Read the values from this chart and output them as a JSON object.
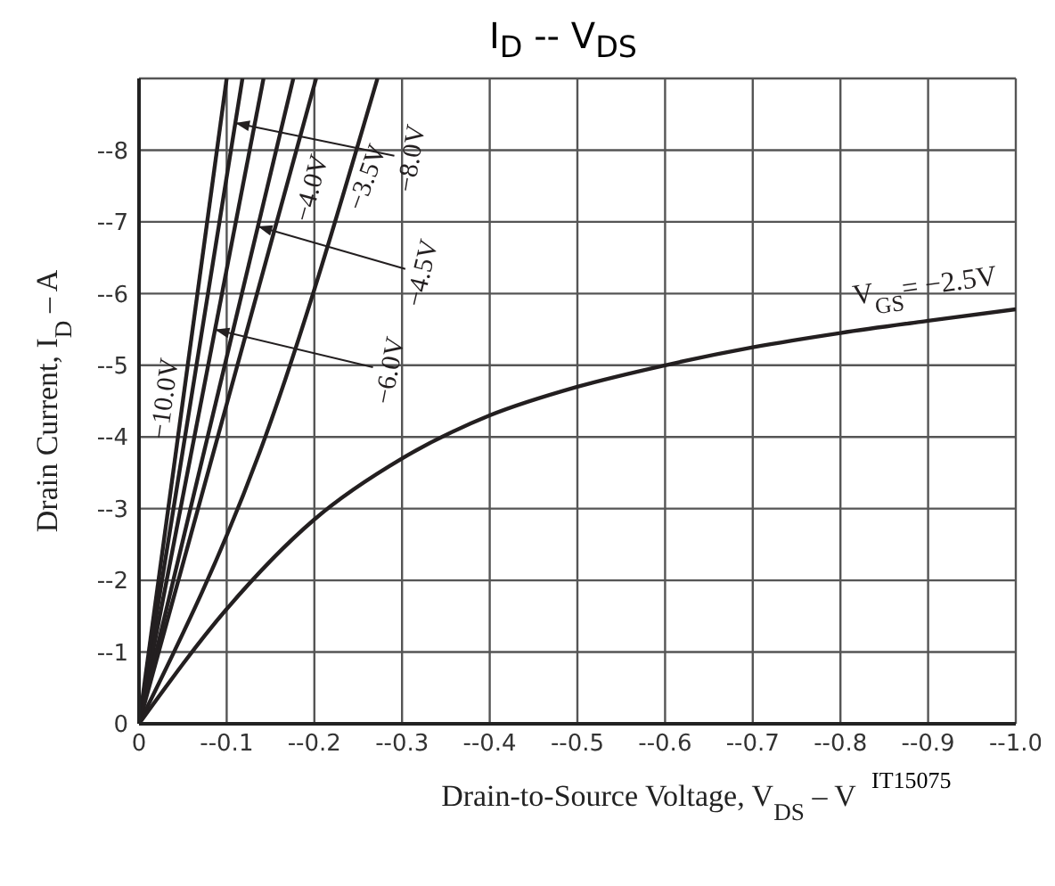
{
  "chart_data": {
    "type": "line",
    "title": "I$_{D}$ -- V$_{DS}$",
    "xlabel": "Drain-to-Source Voltage, V$_{DS}$ – V",
    "ylabel": "Drain Current, I$_{D}$ – A",
    "annotations": [
      "IT15075"
    ],
    "xlim": [
      0,
      -1.0
    ],
    "ylim": [
      0,
      -9
    ],
    "xticks": [
      0,
      {
        "value": -0.1,
        "label": "--0.1"
      },
      {
        "value": -0.2,
        "label": "--0.2"
      },
      {
        "value": -0.3,
        "label": "--0.3"
      },
      {
        "value": -0.4,
        "label": "--0.4"
      },
      {
        "value": -0.5,
        "label": "--0.5"
      },
      {
        "value": -0.6,
        "label": "--0.6"
      },
      {
        "value": -0.7,
        "label": "--0.7"
      },
      {
        "value": -0.8,
        "label": "--0.8"
      },
      {
        "value": -0.9,
        "label": "--0.9"
      },
      {
        "value": -1.0,
        "label": "--1.0"
      }
    ],
    "yticks": [
      0,
      {
        "value": -1,
        "label": "--1"
      },
      {
        "value": -2,
        "label": "--2"
      },
      {
        "value": -3,
        "label": "--3"
      },
      {
        "value": -4,
        "label": "--4"
      },
      {
        "value": -5,
        "label": "--5"
      },
      {
        "value": -6,
        "label": "--6"
      },
      {
        "value": -7,
        "label": "--7"
      },
      {
        "value": -8,
        "label": "--8"
      },
      {
        "value": -9,
        "label": null
      }
    ],
    "grid": true,
    "legend": false,
    "marker": "none",
    "line_style": "solid",
    "series": [
      {
        "name": "−10.0V",
        "color": "#231f20",
        "x": [
          0,
          -0.1
        ],
        "values": [
          0,
          -9
        ]
      },
      {
        "name": "−8.0V",
        "color": "#231f20",
        "x": [
          0,
          -0.118
        ],
        "values": [
          0,
          -9
        ]
      },
      {
        "name": "−6.0V",
        "color": "#231f20",
        "x": [
          0,
          -0.142
        ],
        "values": [
          0,
          -9
        ]
      },
      {
        "name": "−4.5V",
        "color": "#231f20",
        "x": [
          0,
          -0.176
        ],
        "values": [
          0,
          -9
        ]
      },
      {
        "name": "−4.0V",
        "color": "#231f20",
        "x": [
          0,
          -0.202
        ],
        "values": [
          0,
          -9
        ]
      },
      {
        "name": "−3.5V",
        "color": "#231f20",
        "x": [
          0,
          -0.144,
          -0.272
        ],
        "values": [
          0,
          -4,
          -9
        ]
      },
      {
        "name": "V$_{GS}$= −2.5V",
        "color": "#231f20",
        "x": [
          0,
          -0.1,
          -0.2,
          -0.3,
          -0.4,
          -0.5,
          -0.6,
          -0.7,
          -0.8,
          -0.9,
          -1.0
        ],
        "values": [
          0,
          -1.6,
          -2.85,
          -3.7,
          -4.3,
          -4.7,
          -5.0,
          -5.25,
          -5.45,
          -5.62,
          -5.78
        ]
      }
    ]
  }
}
